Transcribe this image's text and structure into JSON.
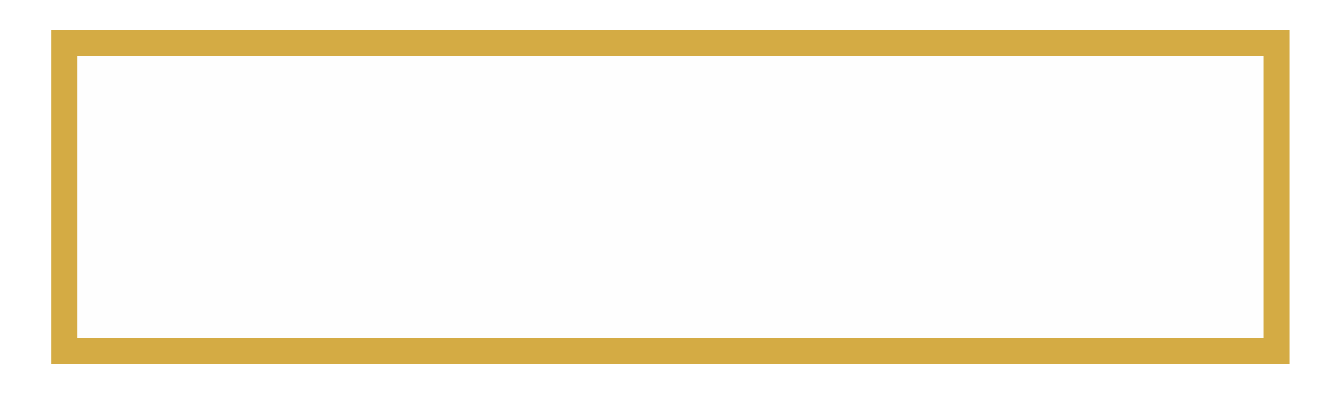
{
  "colors": {
    "frame_border": "#d4ab44",
    "frame_fill": "#fefefe",
    "page_background": "#ffffff"
  },
  "frame": {
    "content": ""
  }
}
